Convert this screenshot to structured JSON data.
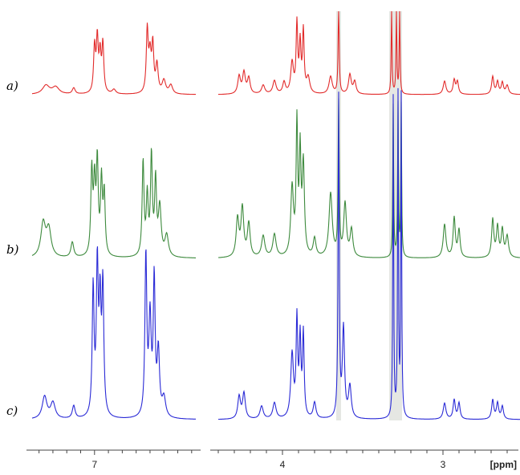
{
  "chart_data": {
    "type": "line",
    "title": "",
    "xlabel": "[ppm]",
    "ylabel": "",
    "x_axis": {
      "reversed": true,
      "break": [
        4.6,
        6.3
      ],
      "ticks": [
        7,
        4,
        3
      ]
    },
    "grid": false,
    "series": [
      {
        "name": "a)",
        "color": "#e22b2b",
        "peaks": [
          {
            "x": 7.35,
            "y": 0.1,
            "w": 0.03
          },
          {
            "x": 7.28,
            "y": 0.08,
            "w": 0.03
          },
          {
            "x": 7.15,
            "y": 0.07,
            "w": 0.012
          },
          {
            "x": 7.0,
            "y": 0.52,
            "w": 0.008
          },
          {
            "x": 6.98,
            "y": 0.6,
            "w": 0.008
          },
          {
            "x": 6.96,
            "y": 0.42,
            "w": 0.008
          },
          {
            "x": 6.94,
            "y": 0.55,
            "w": 0.008
          },
          {
            "x": 6.86,
            "y": 0.05,
            "w": 0.015
          },
          {
            "x": 6.62,
            "y": 0.7,
            "w": 0.008
          },
          {
            "x": 6.6,
            "y": 0.42,
            "w": 0.01
          },
          {
            "x": 6.58,
            "y": 0.52,
            "w": 0.008
          },
          {
            "x": 6.55,
            "y": 0.32,
            "w": 0.01
          },
          {
            "x": 6.5,
            "y": 0.15,
            "w": 0.015
          },
          {
            "x": 6.45,
            "y": 0.1,
            "w": 0.015
          },
          {
            "x": 4.27,
            "y": 0.2,
            "w": 0.01
          },
          {
            "x": 4.24,
            "y": 0.24,
            "w": 0.01
          },
          {
            "x": 4.21,
            "y": 0.18,
            "w": 0.01
          },
          {
            "x": 4.12,
            "y": 0.1,
            "w": 0.012
          },
          {
            "x": 4.05,
            "y": 0.15,
            "w": 0.012
          },
          {
            "x": 3.99,
            "y": 0.13,
            "w": 0.01
          },
          {
            "x": 3.94,
            "y": 0.35,
            "w": 0.01
          },
          {
            "x": 3.91,
            "y": 0.78,
            "w": 0.006
          },
          {
            "x": 3.89,
            "y": 0.55,
            "w": 0.006
          },
          {
            "x": 3.87,
            "y": 0.7,
            "w": 0.006
          },
          {
            "x": 3.84,
            "y": 0.18,
            "w": 0.012
          },
          {
            "x": 3.7,
            "y": 0.2,
            "w": 0.012
          },
          {
            "x": 3.65,
            "y": 1.0,
            "w": 0.004
          },
          {
            "x": 3.58,
            "y": 0.22,
            "w": 0.01
          },
          {
            "x": 3.55,
            "y": 0.14,
            "w": 0.01
          },
          {
            "x": 3.32,
            "y": 1.0,
            "w": 0.003
          },
          {
            "x": 3.29,
            "y": 1.0,
            "w": 0.003
          },
          {
            "x": 3.27,
            "y": 1.0,
            "w": 0.003
          },
          {
            "x": 2.99,
            "y": 0.15,
            "w": 0.01
          },
          {
            "x": 2.93,
            "y": 0.16,
            "w": 0.008
          },
          {
            "x": 2.91,
            "y": 0.14,
            "w": 0.008
          },
          {
            "x": 2.69,
            "y": 0.2,
            "w": 0.008
          },
          {
            "x": 2.66,
            "y": 0.14,
            "w": 0.008
          },
          {
            "x": 2.63,
            "y": 0.13,
            "w": 0.008
          },
          {
            "x": 2.6,
            "y": 0.1,
            "w": 0.01
          }
        ]
      },
      {
        "name": "b)",
        "color": "#3d8a3d",
        "peaks": [
          {
            "x": 7.37,
            "y": 0.22,
            "w": 0.02
          },
          {
            "x": 7.33,
            "y": 0.18,
            "w": 0.02
          },
          {
            "x": 7.16,
            "y": 0.1,
            "w": 0.012
          },
          {
            "x": 7.02,
            "y": 0.55,
            "w": 0.008
          },
          {
            "x": 7.0,
            "y": 0.45,
            "w": 0.008
          },
          {
            "x": 6.98,
            "y": 0.6,
            "w": 0.008
          },
          {
            "x": 6.95,
            "y": 0.48,
            "w": 0.008
          },
          {
            "x": 6.93,
            "y": 0.4,
            "w": 0.008
          },
          {
            "x": 6.65,
            "y": 0.62,
            "w": 0.008
          },
          {
            "x": 6.62,
            "y": 0.38,
            "w": 0.008
          },
          {
            "x": 6.59,
            "y": 0.65,
            "w": 0.008
          },
          {
            "x": 6.56,
            "y": 0.48,
            "w": 0.008
          },
          {
            "x": 6.53,
            "y": 0.32,
            "w": 0.012
          },
          {
            "x": 6.48,
            "y": 0.14,
            "w": 0.015
          },
          {
            "x": 4.28,
            "y": 0.25,
            "w": 0.01
          },
          {
            "x": 4.25,
            "y": 0.32,
            "w": 0.01
          },
          {
            "x": 4.21,
            "y": 0.22,
            "w": 0.01
          },
          {
            "x": 4.12,
            "y": 0.14,
            "w": 0.012
          },
          {
            "x": 4.05,
            "y": 0.15,
            "w": 0.012
          },
          {
            "x": 3.94,
            "y": 0.45,
            "w": 0.01
          },
          {
            "x": 3.91,
            "y": 0.85,
            "w": 0.006
          },
          {
            "x": 3.89,
            "y": 0.65,
            "w": 0.006
          },
          {
            "x": 3.87,
            "y": 0.6,
            "w": 0.008
          },
          {
            "x": 3.8,
            "y": 0.12,
            "w": 0.01
          },
          {
            "x": 3.7,
            "y": 0.42,
            "w": 0.012
          },
          {
            "x": 3.65,
            "y": 1.0,
            "w": 0.004
          },
          {
            "x": 3.61,
            "y": 0.35,
            "w": 0.01
          },
          {
            "x": 3.57,
            "y": 0.18,
            "w": 0.01
          },
          {
            "x": 3.31,
            "y": 1.0,
            "w": 0.003
          },
          {
            "x": 3.28,
            "y": 1.0,
            "w": 0.003
          },
          {
            "x": 3.26,
            "y": 1.0,
            "w": 0.003
          },
          {
            "x": 2.99,
            "y": 0.22,
            "w": 0.01
          },
          {
            "x": 2.93,
            "y": 0.26,
            "w": 0.008
          },
          {
            "x": 2.9,
            "y": 0.18,
            "w": 0.008
          },
          {
            "x": 2.69,
            "y": 0.25,
            "w": 0.008
          },
          {
            "x": 2.66,
            "y": 0.2,
            "w": 0.008
          },
          {
            "x": 2.63,
            "y": 0.18,
            "w": 0.008
          },
          {
            "x": 2.6,
            "y": 0.14,
            "w": 0.01
          }
        ]
      },
      {
        "name": "c)",
        "color": "#2a2ad6",
        "peaks": [
          {
            "x": 7.36,
            "y": 0.07,
            "w": 0.02
          },
          {
            "x": 7.3,
            "y": 0.05,
            "w": 0.02
          },
          {
            "x": 7.15,
            "y": 0.04,
            "w": 0.012
          },
          {
            "x": 7.01,
            "y": 0.4,
            "w": 0.008
          },
          {
            "x": 6.98,
            "y": 0.46,
            "w": 0.008
          },
          {
            "x": 6.96,
            "y": 0.33,
            "w": 0.008
          },
          {
            "x": 6.94,
            "y": 0.4,
            "w": 0.008
          },
          {
            "x": 6.63,
            "y": 0.5,
            "w": 0.008
          },
          {
            "x": 6.6,
            "y": 0.3,
            "w": 0.01
          },
          {
            "x": 6.57,
            "y": 0.42,
            "w": 0.008
          },
          {
            "x": 6.54,
            "y": 0.2,
            "w": 0.01
          },
          {
            "x": 6.5,
            "y": 0.06,
            "w": 0.015
          },
          {
            "x": 4.27,
            "y": 0.07,
            "w": 0.01
          },
          {
            "x": 4.24,
            "y": 0.08,
            "w": 0.01
          },
          {
            "x": 4.13,
            "y": 0.04,
            "w": 0.012
          },
          {
            "x": 4.05,
            "y": 0.05,
            "w": 0.012
          },
          {
            "x": 3.94,
            "y": 0.2,
            "w": 0.01
          },
          {
            "x": 3.91,
            "y": 0.3,
            "w": 0.006
          },
          {
            "x": 3.89,
            "y": 0.24,
            "w": 0.006
          },
          {
            "x": 3.87,
            "y": 0.26,
            "w": 0.006
          },
          {
            "x": 3.8,
            "y": 0.05,
            "w": 0.01
          },
          {
            "x": 3.65,
            "y": 1.0,
            "w": 0.004
          },
          {
            "x": 3.62,
            "y": 0.28,
            "w": 0.008
          },
          {
            "x": 3.58,
            "y": 0.1,
            "w": 0.01
          },
          {
            "x": 3.31,
            "y": 1.0,
            "w": 0.003
          },
          {
            "x": 3.28,
            "y": 1.0,
            "w": 0.003
          },
          {
            "x": 3.26,
            "y": 1.0,
            "w": 0.003
          },
          {
            "x": 2.99,
            "y": 0.05,
            "w": 0.01
          },
          {
            "x": 2.93,
            "y": 0.06,
            "w": 0.008
          },
          {
            "x": 2.9,
            "y": 0.05,
            "w": 0.008
          },
          {
            "x": 2.69,
            "y": 0.06,
            "w": 0.008
          },
          {
            "x": 2.66,
            "y": 0.05,
            "w": 0.008
          },
          {
            "x": 2.63,
            "y": 0.04,
            "w": 0.008
          }
        ]
      }
    ]
  }
}
